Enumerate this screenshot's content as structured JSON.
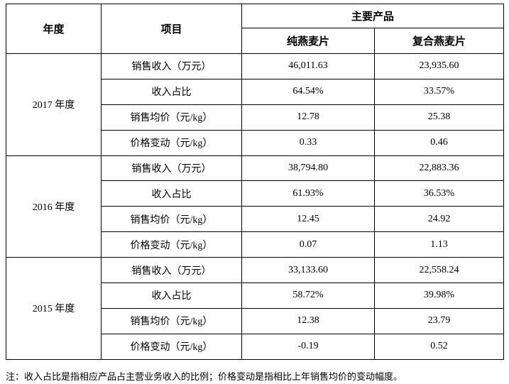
{
  "header": {
    "year": "年度",
    "item": "项目",
    "main": "主要产品",
    "col1": "纯燕麦片",
    "col2": "复合燕麦片"
  },
  "groups": [
    {
      "year": "2017 年度",
      "rows": [
        [
          "销售收入（万元）",
          "46,011.63",
          "23,935.60"
        ],
        [
          "收入占比",
          "64.54%",
          "33.57%"
        ],
        [
          "销售均价（元/kg）",
          "12.78",
          "25.38"
        ],
        [
          "价格变动（元/kg）",
          "0.33",
          "0.46"
        ]
      ]
    },
    {
      "year": "2016 年度",
      "rows": [
        [
          "销售收入（万元）",
          "38,794.80",
          "22,883.36"
        ],
        [
          "收入占比",
          "61.93%",
          "36.53%"
        ],
        [
          "销售均价（元/kg）",
          "12.45",
          "24.92"
        ],
        [
          "价格变动（元/kg）",
          "0.07",
          "1.13"
        ]
      ]
    },
    {
      "year": "2015 年度",
      "rows": [
        [
          "销售收入（万元）",
          "33,133.60",
          "22,558.24"
        ],
        [
          "收入占比",
          "58.72%",
          "39.98%"
        ],
        [
          "销售均价（元/kg）",
          "12.38",
          "23.79"
        ],
        [
          "价格变动（元/kg）",
          "-0.19",
          "0.52"
        ]
      ]
    }
  ],
  "note": "注：收入占比是指相应产品占主营业务收入的比例；价格变动是指相比上年销售均价的变动幅度。"
}
